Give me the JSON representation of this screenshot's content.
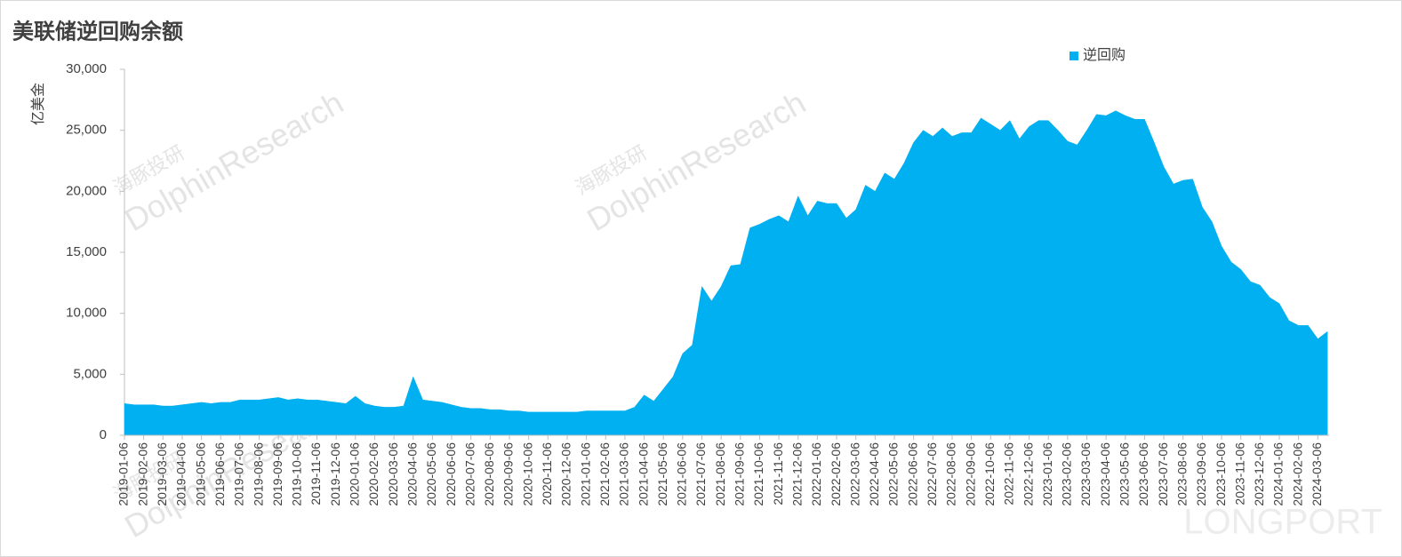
{
  "chart_data": {
    "type": "area",
    "title": "美联储逆回购余额",
    "y_label": "亿美金",
    "watermarks": [
      "海豚投研",
      "DolphinResearch"
    ],
    "corner_mark": "LONGPORT",
    "legend": "top-right",
    "ylim": [
      0,
      30000
    ],
    "yticks": [
      0,
      {
        "value": 5000,
        "label": "5,000"
      },
      {
        "value": 10000,
        "label": "10,000"
      },
      {
        "value": 15000,
        "label": "15,000"
      },
      {
        "value": 20000,
        "label": "20,000"
      },
      {
        "value": 25000,
        "label": "25,000"
      },
      {
        "value": 30000,
        "label": "30,000"
      }
    ],
    "categories": [
      "2019-01-06",
      null,
      "2019-02-06",
      null,
      "2019-03-06",
      null,
      "2019-04-06",
      null,
      "2019-05-06",
      null,
      "2019-06-06",
      null,
      "2019-07-06",
      null,
      "2019-08-06",
      null,
      "2019-09-06",
      null,
      "2019-10-06",
      null,
      "2019-11-06",
      null,
      "2019-12-06",
      null,
      "2020-01-06",
      null,
      "2020-02-06",
      null,
      "2020-03-06",
      null,
      "2020-04-06",
      null,
      "2020-05-06",
      null,
      "2020-06-06",
      null,
      "2020-07-06",
      null,
      "2020-08-06",
      null,
      "2020-09-06",
      null,
      "2020-10-06",
      null,
      "2020-11-06",
      null,
      "2020-12-06",
      null,
      "2021-01-06",
      null,
      "2021-02-06",
      null,
      "2021-03-06",
      null,
      "2021-04-06",
      null,
      "2021-05-06",
      null,
      "2021-06-06",
      null,
      "2021-07-06",
      null,
      "2021-08-06",
      null,
      "2021-09-06",
      null,
      "2021-10-06",
      null,
      "2021-11-06",
      null,
      "2021-12-06",
      null,
      "2022-01-06",
      null,
      "2022-02-06",
      null,
      "2022-03-06",
      null,
      "2022-04-06",
      null,
      "2022-05-06",
      null,
      "2022-06-06",
      null,
      "2022-07-06",
      null,
      "2022-08-06",
      null,
      "2022-09-06",
      null,
      "2022-10-06",
      null,
      "2022-11-06",
      null,
      "2022-12-06",
      null,
      "2023-01-06",
      null,
      "2023-02-06",
      null,
      "2023-03-06",
      null,
      "2023-04-06",
      null,
      "2023-05-06",
      null,
      "2023-06-06",
      null,
      "2023-07-06",
      null,
      "2023-08-06",
      null,
      "2023-09-06",
      null,
      "2023-10-06",
      null,
      "2023-11-06",
      null,
      "2023-12-06",
      null,
      "2024-01-06",
      null,
      "2024-02-06",
      null,
      "2024-03-06",
      null
    ],
    "series": [
      {
        "name": "逆回购",
        "color": "#00b0f0",
        "values": [
          2600,
          2500,
          2500,
          2500,
          2400,
          2400,
          2500,
          2600,
          2700,
          2600,
          2700,
          2700,
          2900,
          2900,
          2900,
          3000,
          3100,
          2900,
          3000,
          2900,
          2900,
          2800,
          2700,
          2600,
          3200,
          2600,
          2400,
          2300,
          2300,
          2400,
          4800,
          2900,
          2800,
          2700,
          2500,
          2300,
          2200,
          2200,
          2100,
          2100,
          2000,
          2000,
          1900,
          1900,
          1900,
          1900,
          1900,
          1900,
          2000,
          2000,
          2000,
          2000,
          2000,
          2300,
          3300,
          2800,
          3800,
          4800,
          6700,
          7400,
          12200,
          11000,
          12200,
          13900,
          14000,
          17000,
          17300,
          17700,
          18000,
          17500,
          19600,
          18000,
          19200,
          19000,
          19000,
          17800,
          18500,
          20500,
          20000,
          21500,
          21000,
          22300,
          24000,
          25000,
          24500,
          25200,
          24500,
          24800,
          24800,
          26000,
          25500,
          25000,
          25800,
          24300,
          25300,
          25800,
          25800,
          25000,
          24100,
          23800,
          25000,
          26300,
          26200,
          26600,
          26200,
          25900,
          25900,
          24000,
          22000,
          20600,
          20900,
          21000,
          18700,
          17500,
          15500,
          14200,
          13600,
          12600,
          12300,
          11300,
          10800,
          9400,
          9000,
          9000,
          7900,
          8500
        ]
      }
    ]
  }
}
